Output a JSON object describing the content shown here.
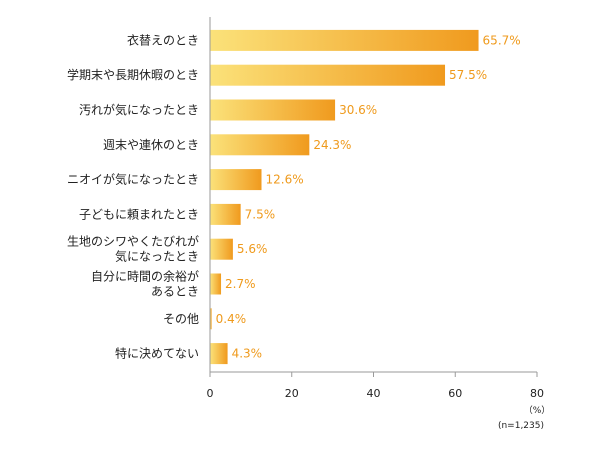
{
  "chart_data": {
    "type": "bar",
    "orientation": "horizontal",
    "categories": [
      [
        "衣替えのとき"
      ],
      [
        "学期末や長期休暇のとき"
      ],
      [
        "汚れが気になったとき"
      ],
      [
        "週末や連休のとき"
      ],
      [
        "ニオイが気になったとき"
      ],
      [
        "子どもに頼まれたとき"
      ],
      [
        "生地のシワやくたびれが",
        "気になったとき"
      ],
      [
        "自分に時間の余裕が",
        "あるとき"
      ],
      [
        "その他"
      ],
      [
        "特に決めてない"
      ]
    ],
    "values": [
      65.7,
      57.5,
      30.6,
      24.3,
      12.6,
      7.5,
      5.6,
      2.7,
      0.4,
      4.3
    ],
    "value_labels": [
      "65.7%",
      "57.5%",
      "30.6%",
      "24.3%",
      "12.6%",
      "7.5%",
      "5.6%",
      "2.7%",
      "0.4%",
      "4.3%"
    ],
    "xlim": [
      0,
      80
    ],
    "xticks": [
      0,
      20,
      40,
      60,
      80
    ],
    "unit_label": "（%）",
    "sample_label": "(n=1,235)",
    "grid": false,
    "colors": {
      "bar_start": "#fbe27a",
      "bar_end": "#f09a1e",
      "value_text": "#ef9a1c",
      "axis": "#9a9a9a",
      "text": "#222222"
    }
  }
}
